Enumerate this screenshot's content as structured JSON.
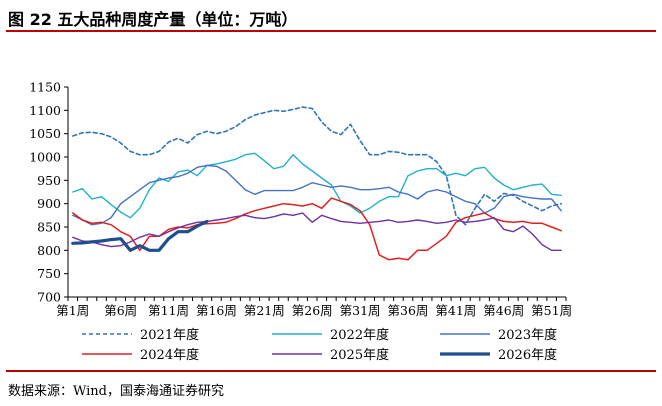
{
  "header": {
    "title": "图 22  五大品种周度产量（单位：万吨）"
  },
  "footer": {
    "source": "数据来源：Wind，国泰海通证券研究"
  },
  "chart_data": {
    "type": "line",
    "xlabel": "",
    "ylabel": "",
    "ylim": [
      700,
      1150
    ],
    "yticks": [
      700,
      750,
      800,
      850,
      900,
      950,
      1000,
      1050,
      1100,
      1150
    ],
    "xtick_labels": [
      "第1周",
      "第6周",
      "第11周",
      "第16周",
      "第21周",
      "第26周",
      "第31周",
      "第36周",
      "第41周",
      "第46周",
      "第51周"
    ],
    "x_count": 52,
    "legend_position": "bottom",
    "grid": false,
    "series": [
      {
        "name": "2021年度",
        "color": "#2e75b6",
        "style": "dashed",
        "width": 1.6,
        "values": [
          1045,
          1052,
          1053,
          1050,
          1043,
          1030,
          1012,
          1005,
          1005,
          1012,
          1032,
          1040,
          1030,
          1048,
          1055,
          1050,
          1055,
          1065,
          1080,
          1090,
          1095,
          1100,
          1098,
          1102,
          1107,
          1104,
          1075,
          1055,
          1048,
          1070,
          1035,
          1005,
          1005,
          1012,
          1010,
          1005,
          1005,
          1005,
          990,
          960,
          875,
          855,
          890,
          920,
          905,
          922,
          918,
          905,
          895,
          885,
          895,
          900
        ]
      },
      {
        "name": "2022年度",
        "color": "#22b2c8",
        "style": "solid",
        "width": 1.4,
        "values": [
          925,
          932,
          910,
          915,
          898,
          882,
          870,
          890,
          930,
          955,
          948,
          968,
          972,
          960,
          982,
          985,
          990,
          995,
          1005,
          1008,
          992,
          975,
          980,
          1005,
          985,
          970,
          955,
          940,
          905,
          895,
          880,
          890,
          905,
          915,
          915,
          960,
          970,
          975,
          975,
          960,
          965,
          960,
          975,
          978,
          955,
          940,
          930,
          935,
          940,
          942,
          920,
          918
        ]
      },
      {
        "name": "2023年度",
        "color": "#4472c4",
        "style": "solid",
        "width": 1.4,
        "values": [
          875,
          865,
          855,
          858,
          870,
          900,
          915,
          930,
          945,
          950,
          955,
          958,
          965,
          978,
          982,
          980,
          970,
          950,
          930,
          920,
          928,
          928,
          928,
          928,
          935,
          945,
          940,
          935,
          938,
          935,
          930,
          930,
          932,
          935,
          925,
          920,
          910,
          925,
          930,
          925,
          915,
          905,
          900,
          880,
          890,
          915,
          920,
          915,
          912,
          910,
          910,
          885
        ]
      },
      {
        "name": "2024年度",
        "color": "#e02020",
        "style": "solid",
        "width": 1.5,
        "values": [
          880,
          865,
          858,
          860,
          855,
          840,
          830,
          800,
          830,
          830,
          845,
          850,
          848,
          855,
          857,
          858,
          860,
          868,
          878,
          885,
          890,
          895,
          900,
          898,
          895,
          900,
          890,
          912,
          905,
          898,
          885,
          855,
          790,
          780,
          783,
          780,
          800,
          800,
          815,
          830,
          860,
          870,
          875,
          880,
          868,
          862,
          860,
          862,
          858,
          858,
          850,
          842
        ]
      },
      {
        "name": "2025年度",
        "color": "#7030a0",
        "style": "solid",
        "width": 1.4,
        "values": [
          828,
          820,
          818,
          812,
          808,
          810,
          818,
          828,
          835,
          830,
          840,
          848,
          855,
          860,
          862,
          865,
          868,
          872,
          875,
          870,
          868,
          872,
          878,
          875,
          880,
          860,
          875,
          868,
          862,
          860,
          858,
          860,
          862,
          865,
          860,
          862,
          865,
          862,
          858,
          860,
          865,
          860,
          862,
          865,
          870,
          845,
          840,
          852,
          835,
          812,
          800,
          800
        ]
      },
      {
        "name": "2026年度",
        "color": "#1f4e8c",
        "style": "solid",
        "width": 3.2,
        "values": [
          815,
          816,
          818,
          820,
          823,
          825,
          800,
          810,
          800,
          800,
          825,
          840,
          840,
          852,
          862,
          null,
          null,
          null,
          null,
          null,
          null,
          null,
          null,
          null,
          null,
          null,
          null,
          null,
          null,
          null,
          null,
          null,
          null,
          null,
          null,
          null,
          null,
          null,
          null,
          null,
          null,
          null,
          null,
          null,
          null,
          null,
          null,
          null,
          null,
          null,
          null,
          null
        ]
      }
    ]
  }
}
